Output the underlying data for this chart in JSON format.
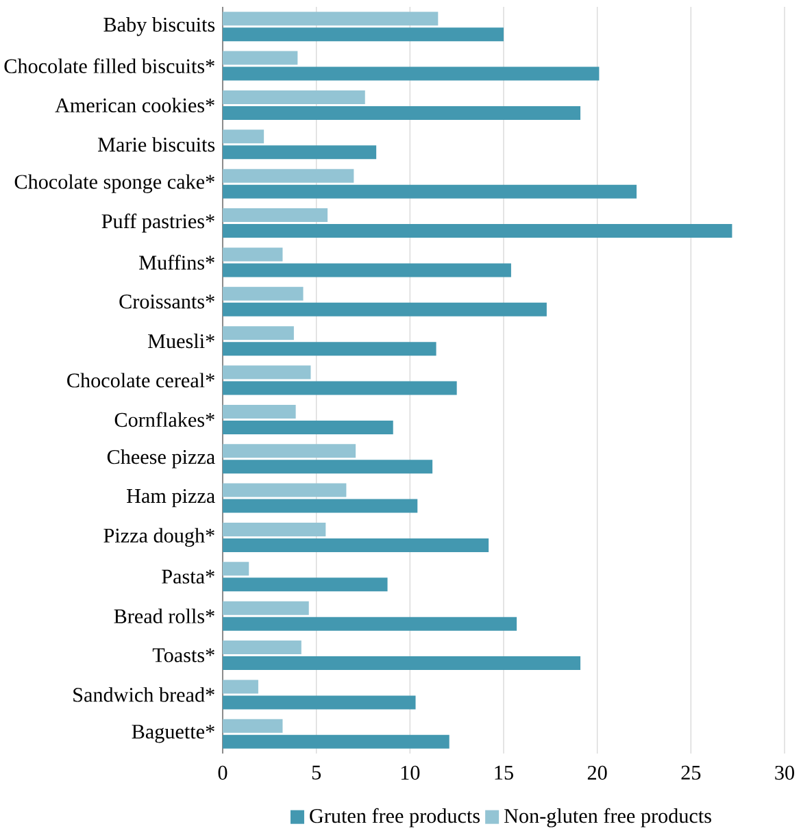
{
  "chart_data": {
    "type": "bar",
    "orientation": "horizontal",
    "categories": [
      "Baby biscuits",
      "Chocolate filled biscuits*",
      "American cookies*",
      "Marie biscuits",
      "Chocolate sponge cake*",
      "Puff pastries*",
      "Muffins*",
      "Croissants*",
      "Muesli*",
      "Chocolate cereal*",
      "Cornflakes*",
      "Cheese pizza",
      "Ham pizza",
      "Pizza dough*",
      "Pasta*",
      "Bread rolls*",
      "Toasts*",
      "Sandwich bread*",
      "Baguette*"
    ],
    "series": [
      {
        "name": "Gruten free products",
        "color": "#4398b0",
        "values": [
          15.0,
          20.1,
          19.1,
          8.2,
          22.1,
          27.2,
          15.4,
          17.3,
          11.4,
          12.5,
          9.1,
          11.2,
          10.4,
          14.2,
          8.8,
          15.7,
          19.1,
          10.3,
          12.1
        ]
      },
      {
        "name": "Non-gluten free products",
        "color": "#93c4d4",
        "values": [
          11.5,
          4.0,
          7.6,
          2.2,
          7.0,
          5.6,
          3.2,
          4.3,
          3.8,
          4.7,
          3.9,
          7.1,
          6.6,
          5.5,
          1.4,
          4.6,
          4.2,
          1.9,
          3.2
        ]
      }
    ],
    "xlim": [
      0,
      30
    ],
    "xticks": [
      0,
      5,
      10,
      15,
      20,
      25,
      30
    ],
    "grid": "x",
    "legend": "bottom"
  }
}
